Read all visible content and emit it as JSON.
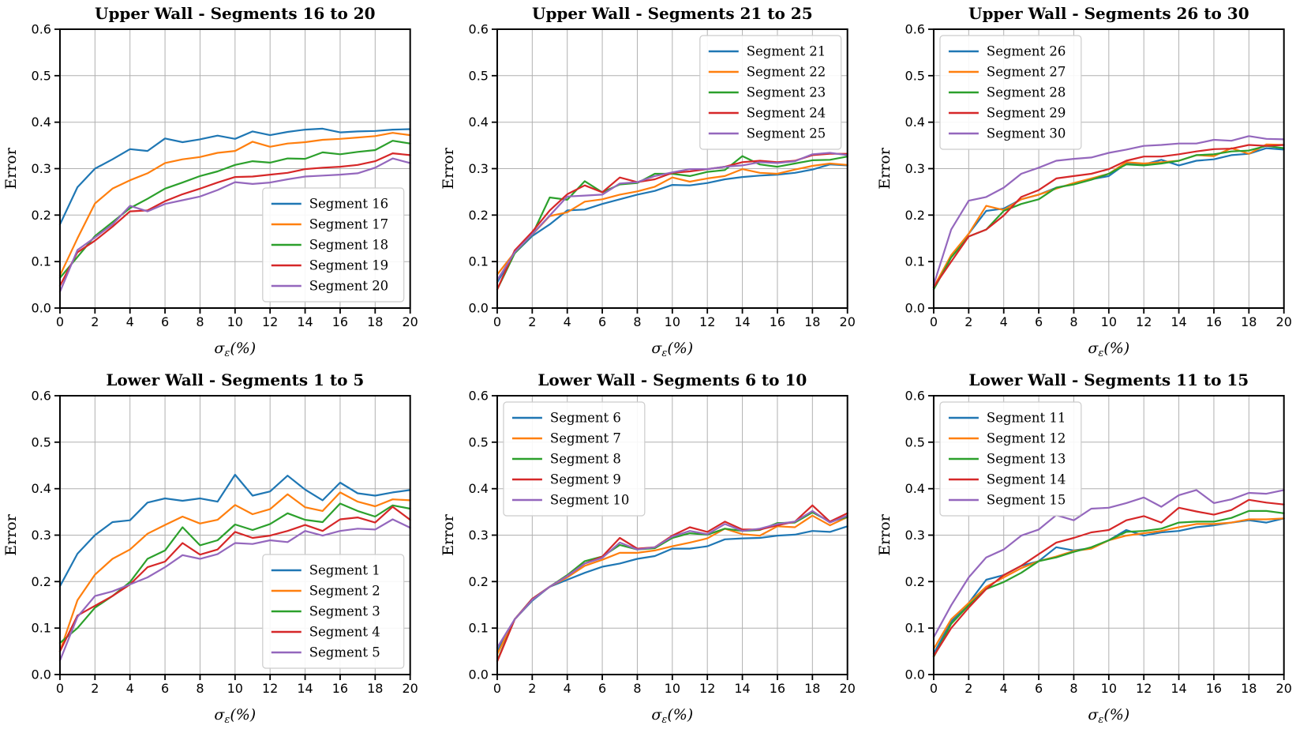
{
  "figure": {
    "background": "#ffffff",
    "grid_color": "#b0b0b0",
    "text_color": "#000000",
    "palette": [
      "#1f77b4",
      "#ff7f0e",
      "#2ca02c",
      "#d62728",
      "#9467bd"
    ],
    "axes": {
      "xlabel": "σε(%)",
      "ylabel": "Error",
      "xlim": [
        0,
        20
      ],
      "ylim": [
        0.0,
        0.6
      ],
      "xticks": [
        0,
        2,
        4,
        6,
        8,
        10,
        12,
        14,
        16,
        18,
        20
      ],
      "xtick_labels": [
        "0",
        "2",
        "4",
        "6",
        "8",
        "10",
        "12",
        "14",
        "16",
        "18",
        "20"
      ],
      "ytick_values": [
        0.0,
        0.1,
        0.2,
        0.3,
        0.4,
        0.5,
        0.6
      ],
      "ytick_labels": [
        "0.0",
        "0.1",
        "0.2",
        "0.3",
        "0.4",
        "0.5",
        "0.6"
      ],
      "grid": true
    }
  },
  "chart_data": [
    {
      "type": "line",
      "title": "Upper Wall - Segments 16 to 20",
      "xlabel": "σε(%)",
      "ylabel": "Error",
      "xlim": [
        0,
        20
      ],
      "ylim": [
        0.0,
        0.6
      ],
      "legend_position": "lower-right",
      "x": [
        0,
        1,
        2,
        3,
        4,
        5,
        6,
        7,
        8,
        9,
        10,
        11,
        12,
        13,
        14,
        15,
        16,
        17,
        18,
        19,
        20
      ],
      "series": [
        {
          "name": "Segment 16",
          "color": "#1f77b4",
          "values": [
            0.18,
            0.26,
            0.3,
            0.32,
            0.342,
            0.338,
            0.365,
            0.357,
            0.363,
            0.371,
            0.364,
            0.38,
            0.372,
            0.379,
            0.384,
            0.386,
            0.378,
            0.38,
            0.381,
            0.384,
            0.385
          ]
        },
        {
          "name": "Segment 17",
          "color": "#ff7f0e",
          "values": [
            0.07,
            0.15,
            0.225,
            0.257,
            0.275,
            0.29,
            0.312,
            0.32,
            0.325,
            0.334,
            0.338,
            0.358,
            0.347,
            0.354,
            0.357,
            0.362,
            0.364,
            0.367,
            0.37,
            0.377,
            0.372
          ]
        },
        {
          "name": "Segment 18",
          "color": "#2ca02c",
          "values": [
            0.065,
            0.11,
            0.155,
            0.185,
            0.215,
            0.235,
            0.257,
            0.27,
            0.284,
            0.294,
            0.308,
            0.316,
            0.313,
            0.322,
            0.321,
            0.335,
            0.331,
            0.336,
            0.34,
            0.36,
            0.354
          ]
        },
        {
          "name": "Segment 19",
          "color": "#d62728",
          "values": [
            0.048,
            0.12,
            0.145,
            0.175,
            0.208,
            0.21,
            0.23,
            0.245,
            0.257,
            0.27,
            0.282,
            0.283,
            0.287,
            0.291,
            0.299,
            0.302,
            0.304,
            0.308,
            0.316,
            0.333,
            0.329
          ]
        },
        {
          "name": "Segment 20",
          "color": "#9467bd",
          "values": [
            0.035,
            0.125,
            0.152,
            0.18,
            0.22,
            0.208,
            0.224,
            0.232,
            0.24,
            0.254,
            0.271,
            0.267,
            0.27,
            0.277,
            0.283,
            0.285,
            0.287,
            0.29,
            0.302,
            0.322,
            0.312
          ]
        }
      ]
    },
    {
      "type": "line",
      "title": "Upper Wall - Segments 21 to 25",
      "xlabel": "σε(%)",
      "ylabel": "Error",
      "xlim": [
        0,
        20
      ],
      "ylim": [
        0.0,
        0.6
      ],
      "legend_position": "upper-right",
      "x": [
        0,
        1,
        2,
        3,
        4,
        5,
        6,
        7,
        8,
        9,
        10,
        11,
        12,
        13,
        14,
        15,
        16,
        17,
        18,
        19,
        20
      ],
      "series": [
        {
          "name": "Segment 21",
          "color": "#1f77b4",
          "values": [
            0.055,
            0.118,
            0.155,
            0.18,
            0.21,
            0.212,
            0.224,
            0.234,
            0.244,
            0.252,
            0.265,
            0.264,
            0.269,
            0.277,
            0.282,
            0.285,
            0.287,
            0.291,
            0.298,
            0.309,
            0.307
          ]
        },
        {
          "name": "Segment 22",
          "color": "#ff7f0e",
          "values": [
            0.072,
            0.12,
            0.158,
            0.198,
            0.206,
            0.229,
            0.234,
            0.244,
            0.251,
            0.261,
            0.281,
            0.272,
            0.279,
            0.284,
            0.299,
            0.291,
            0.289,
            0.298,
            0.306,
            0.311,
            0.308
          ]
        },
        {
          "name": "Segment 23",
          "color": "#2ca02c",
          "values": [
            0.04,
            0.118,
            0.158,
            0.238,
            0.233,
            0.273,
            0.249,
            0.266,
            0.269,
            0.289,
            0.289,
            0.284,
            0.293,
            0.297,
            0.327,
            0.309,
            0.304,
            0.311,
            0.318,
            0.319,
            0.326
          ]
        },
        {
          "name": "Segment 24",
          "color": "#d62728",
          "values": [
            0.04,
            0.124,
            0.164,
            0.21,
            0.245,
            0.264,
            0.249,
            0.281,
            0.271,
            0.277,
            0.291,
            0.294,
            0.299,
            0.304,
            0.314,
            0.317,
            0.314,
            0.317,
            0.329,
            0.332,
            0.332
          ]
        },
        {
          "name": "Segment 25",
          "color": "#9467bd",
          "values": [
            0.06,
            0.12,
            0.159,
            0.199,
            0.24,
            0.242,
            0.244,
            0.268,
            0.271,
            0.284,
            0.292,
            0.299,
            0.299,
            0.304,
            0.307,
            0.314,
            0.312,
            0.316,
            0.331,
            0.334,
            0.329
          ]
        }
      ]
    },
    {
      "type": "line",
      "title": "Upper Wall - Segments 26 to 30",
      "xlabel": "σε(%)",
      "ylabel": "Error",
      "xlim": [
        0,
        20
      ],
      "ylim": [
        0.0,
        0.6
      ],
      "legend_position": "upper-left",
      "x": [
        0,
        1,
        2,
        3,
        4,
        5,
        6,
        7,
        8,
        9,
        10,
        11,
        12,
        13,
        14,
        15,
        16,
        17,
        18,
        19,
        20
      ],
      "series": [
        {
          "name": "Segment 26",
          "color": "#1f77b4",
          "values": [
            0.045,
            0.11,
            0.16,
            0.209,
            0.214,
            0.234,
            0.244,
            0.259,
            0.267,
            0.277,
            0.284,
            0.311,
            0.309,
            0.319,
            0.307,
            0.317,
            0.32,
            0.329,
            0.332,
            0.344,
            0.341
          ]
        },
        {
          "name": "Segment 27",
          "color": "#ff7f0e",
          "values": [
            0.045,
            0.114,
            0.16,
            0.22,
            0.211,
            0.234,
            0.244,
            0.257,
            0.269,
            0.279,
            0.289,
            0.314,
            0.311,
            0.314,
            0.317,
            0.329,
            0.327,
            0.344,
            0.332,
            0.352,
            0.351
          ]
        },
        {
          "name": "Segment 28",
          "color": "#2ca02c",
          "values": [
            0.04,
            0.109,
            0.154,
            0.169,
            0.209,
            0.224,
            0.234,
            0.259,
            0.266,
            0.276,
            0.289,
            0.309,
            0.307,
            0.311,
            0.317,
            0.329,
            0.331,
            0.337,
            0.339,
            0.349,
            0.344
          ]
        },
        {
          "name": "Segment 29",
          "color": "#d62728",
          "values": [
            0.045,
            0.1,
            0.154,
            0.169,
            0.199,
            0.239,
            0.254,
            0.279,
            0.284,
            0.289,
            0.299,
            0.317,
            0.326,
            0.326,
            0.331,
            0.337,
            0.342,
            0.343,
            0.351,
            0.349,
            0.351
          ]
        },
        {
          "name": "Segment 30",
          "color": "#9467bd",
          "values": [
            0.05,
            0.169,
            0.231,
            0.239,
            0.259,
            0.289,
            0.302,
            0.317,
            0.321,
            0.324,
            0.334,
            0.341,
            0.349,
            0.351,
            0.354,
            0.354,
            0.362,
            0.36,
            0.37,
            0.364,
            0.363
          ]
        }
      ]
    },
    {
      "type": "line",
      "title": "Lower Wall - Segments 1 to 5",
      "xlabel": "σε(%)",
      "ylabel": "Error",
      "xlim": [
        0,
        20
      ],
      "ylim": [
        0.0,
        0.6
      ],
      "legend_position": "lower-right",
      "x": [
        0,
        1,
        2,
        3,
        4,
        5,
        6,
        7,
        8,
        9,
        10,
        11,
        12,
        13,
        14,
        15,
        16,
        17,
        18,
        19,
        20
      ],
      "series": [
        {
          "name": "Segment 1",
          "color": "#1f77b4",
          "values": [
            0.19,
            0.26,
            0.3,
            0.328,
            0.332,
            0.37,
            0.379,
            0.374,
            0.379,
            0.372,
            0.43,
            0.385,
            0.394,
            0.428,
            0.398,
            0.375,
            0.413,
            0.39,
            0.385,
            0.392,
            0.397
          ]
        },
        {
          "name": "Segment 2",
          "color": "#ff7f0e",
          "values": [
            0.05,
            0.16,
            0.215,
            0.249,
            0.269,
            0.303,
            0.322,
            0.34,
            0.325,
            0.333,
            0.365,
            0.345,
            0.356,
            0.388,
            0.36,
            0.352,
            0.392,
            0.372,
            0.362,
            0.377,
            0.375
          ]
        },
        {
          "name": "Segment 3",
          "color": "#2ca02c",
          "values": [
            0.068,
            0.1,
            0.144,
            0.169,
            0.199,
            0.249,
            0.267,
            0.317,
            0.278,
            0.289,
            0.323,
            0.311,
            0.324,
            0.347,
            0.333,
            0.328,
            0.368,
            0.352,
            0.34,
            0.364,
            0.357
          ]
        },
        {
          "name": "Segment 4",
          "color": "#d62728",
          "values": [
            0.05,
            0.127,
            0.148,
            0.169,
            0.194,
            0.231,
            0.243,
            0.283,
            0.258,
            0.269,
            0.307,
            0.294,
            0.299,
            0.309,
            0.322,
            0.309,
            0.334,
            0.338,
            0.327,
            0.361,
            0.333
          ]
        },
        {
          "name": "Segment 5",
          "color": "#9467bd",
          "values": [
            0.03,
            0.124,
            0.169,
            0.179,
            0.194,
            0.209,
            0.231,
            0.257,
            0.249,
            0.259,
            0.283,
            0.281,
            0.289,
            0.285,
            0.309,
            0.299,
            0.309,
            0.314,
            0.312,
            0.334,
            0.316
          ]
        }
      ]
    },
    {
      "type": "line",
      "title": "Lower Wall - Segments 6 to 10",
      "xlabel": "σε(%)",
      "ylabel": "Error",
      "xlim": [
        0,
        20
      ],
      "ylim": [
        0.0,
        0.6
      ],
      "legend_position": "upper-left",
      "x": [
        0,
        1,
        2,
        3,
        4,
        5,
        6,
        7,
        8,
        9,
        10,
        11,
        12,
        13,
        14,
        15,
        16,
        17,
        18,
        19,
        20
      ],
      "series": [
        {
          "name": "Segment 6",
          "color": "#1f77b4",
          "values": [
            0.05,
            0.119,
            0.159,
            0.189,
            0.204,
            0.219,
            0.232,
            0.239,
            0.249,
            0.255,
            0.271,
            0.271,
            0.276,
            0.291,
            0.293,
            0.294,
            0.299,
            0.301,
            0.309,
            0.307,
            0.319
          ]
        },
        {
          "name": "Segment 7",
          "color": "#ff7f0e",
          "values": [
            0.044,
            0.119,
            0.161,
            0.189,
            0.209,
            0.234,
            0.247,
            0.262,
            0.262,
            0.267,
            0.276,
            0.284,
            0.293,
            0.314,
            0.302,
            0.299,
            0.319,
            0.317,
            0.342,
            0.321,
            0.339
          ]
        },
        {
          "name": "Segment 8",
          "color": "#2ca02c",
          "values": [
            0.03,
            0.119,
            0.163,
            0.189,
            0.214,
            0.244,
            0.254,
            0.279,
            0.269,
            0.272,
            0.294,
            0.304,
            0.301,
            0.314,
            0.309,
            0.311,
            0.326,
            0.327,
            0.349,
            0.329,
            0.339
          ]
        },
        {
          "name": "Segment 9",
          "color": "#d62728",
          "values": [
            0.028,
            0.119,
            0.163,
            0.189,
            0.212,
            0.239,
            0.254,
            0.294,
            0.271,
            0.274,
            0.299,
            0.317,
            0.307,
            0.329,
            0.312,
            0.312,
            0.321,
            0.329,
            0.364,
            0.329,
            0.347
          ]
        },
        {
          "name": "Segment 10",
          "color": "#9467bd",
          "values": [
            0.058,
            0.119,
            0.161,
            0.189,
            0.212,
            0.239,
            0.251,
            0.284,
            0.269,
            0.274,
            0.297,
            0.309,
            0.302,
            0.324,
            0.309,
            0.314,
            0.324,
            0.329,
            0.352,
            0.327,
            0.342
          ]
        }
      ]
    },
    {
      "type": "line",
      "title": "Lower Wall - Segments 11 to 15",
      "xlabel": "σε(%)",
      "ylabel": "Error",
      "xlim": [
        0,
        20
      ],
      "ylim": [
        0.0,
        0.6
      ],
      "legend_position": "upper-left",
      "x": [
        0,
        1,
        2,
        3,
        4,
        5,
        6,
        7,
        8,
        9,
        10,
        11,
        12,
        13,
        14,
        15,
        16,
        17,
        18,
        19,
        20
      ],
      "series": [
        {
          "name": "Segment 11",
          "color": "#1f77b4",
          "values": [
            0.045,
            0.114,
            0.154,
            0.204,
            0.214,
            0.234,
            0.244,
            0.274,
            0.267,
            0.272,
            0.289,
            0.311,
            0.299,
            0.306,
            0.309,
            0.317,
            0.321,
            0.327,
            0.332,
            0.327,
            0.336
          ]
        },
        {
          "name": "Segment 12",
          "color": "#ff7f0e",
          "values": [
            0.055,
            0.119,
            0.154,
            0.189,
            0.209,
            0.229,
            0.244,
            0.254,
            0.266,
            0.271,
            0.289,
            0.299,
            0.304,
            0.309,
            0.317,
            0.324,
            0.324,
            0.327,
            0.334,
            0.334,
            0.336
          ]
        },
        {
          "name": "Segment 13",
          "color": "#2ca02c",
          "values": [
            0.038,
            0.109,
            0.149,
            0.184,
            0.199,
            0.219,
            0.244,
            0.252,
            0.264,
            0.274,
            0.289,
            0.307,
            0.309,
            0.314,
            0.327,
            0.329,
            0.329,
            0.337,
            0.352,
            0.352,
            0.347
          ]
        },
        {
          "name": "Segment 14",
          "color": "#d62728",
          "values": [
            0.04,
            0.1,
            0.144,
            0.184,
            0.214,
            0.234,
            0.259,
            0.284,
            0.294,
            0.306,
            0.311,
            0.332,
            0.341,
            0.327,
            0.359,
            0.351,
            0.344,
            0.354,
            0.376,
            0.37,
            0.366
          ]
        },
        {
          "name": "Segment 15",
          "color": "#9467bd",
          "values": [
            0.08,
            0.149,
            0.209,
            0.252,
            0.269,
            0.299,
            0.312,
            0.343,
            0.332,
            0.357,
            0.359,
            0.369,
            0.381,
            0.361,
            0.386,
            0.397,
            0.369,
            0.377,
            0.391,
            0.389,
            0.397
          ]
        }
      ]
    }
  ]
}
